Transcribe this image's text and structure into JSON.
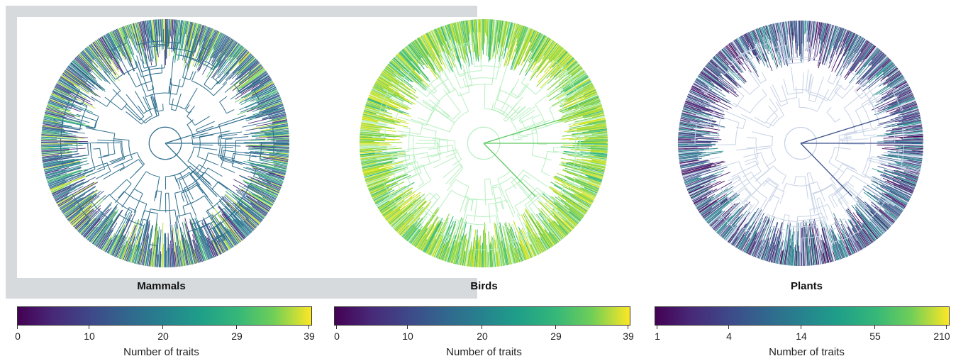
{
  "panels": [
    {
      "title": "Mammals",
      "axis_label": "Number of traits",
      "tick_labels": [
        "0",
        "10",
        "20",
        "29",
        "39"
      ],
      "palette": "viridis",
      "tree_colors": [
        "#2e6f8e",
        "#31688e",
        "#2a788e",
        "#21918c",
        "#3b528b",
        "#482878",
        "#5ec962",
        "#b5de2b"
      ]
    },
    {
      "title": "Birds",
      "axis_label": "Number of traits",
      "tick_labels": [
        "0",
        "10",
        "20",
        "29",
        "39"
      ],
      "palette": "viridis",
      "tree_colors": [
        "#5ec962",
        "#7ad151",
        "#a0da39",
        "#c8e020",
        "#35b779",
        "#8fd744",
        "#d2e21b",
        "#b8f0c0"
      ]
    },
    {
      "title": "Plants",
      "axis_label": "Number of traits",
      "tick_labels": [
        "1",
        "4",
        "14",
        "55",
        "210"
      ],
      "palette": "viridis",
      "tree_colors": [
        "#440154",
        "#482878",
        "#46337e",
        "#3b528b",
        "#31688e",
        "#2a788e",
        "#21918c",
        "#c7d3e6"
      ]
    }
  ]
}
